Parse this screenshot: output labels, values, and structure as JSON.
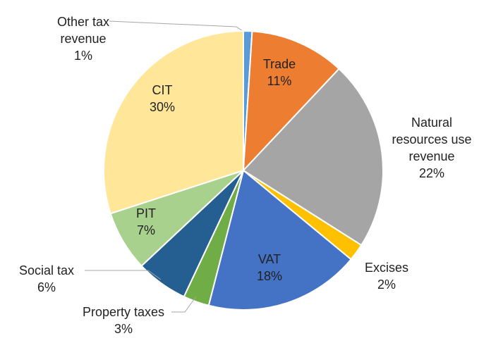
{
  "chart_data": {
    "type": "pie",
    "categories": [
      "Other tax revenue",
      "Trade",
      "Natural resources use revenue",
      "Excises",
      "VAT",
      "Property taxes",
      "Social tax",
      "PIT",
      "CIT"
    ],
    "values": [
      1,
      11,
      22,
      2,
      18,
      3,
      6,
      7,
      30
    ],
    "value_labels": [
      "1%",
      "11%",
      "22%",
      "2%",
      "18%",
      "3%",
      "6%",
      "7%",
      "30%"
    ],
    "colors": [
      "#5b9bd5",
      "#ed7d31",
      "#a5a5a5",
      "#ffc000",
      "#4472c4",
      "#70ad47",
      "#255e91",
      "#a9d18e",
      "#ffe699"
    ]
  }
}
